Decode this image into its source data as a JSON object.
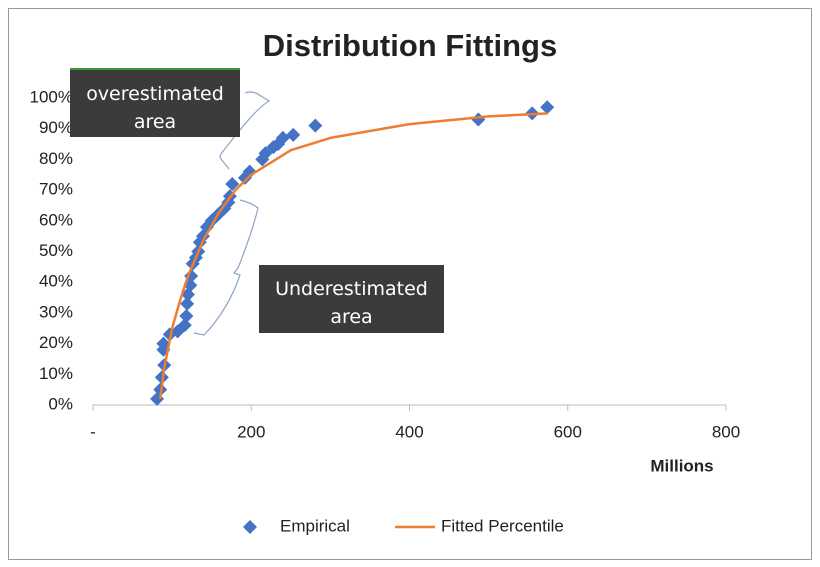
{
  "chart_data": {
    "type": "scatter",
    "title": "Distribution Fittings",
    "x_label": "Millions",
    "xlim": [
      0,
      800
    ],
    "xticks": [
      {
        "value": 0,
        "label": "-"
      },
      200,
      400,
      600,
      800
    ],
    "ylim": [
      0,
      100
    ],
    "yticks": [
      {
        "value": 0,
        "label": "0%"
      },
      {
        "value": 10,
        "label": "10%"
      },
      {
        "value": 20,
        "label": "20%"
      },
      {
        "value": 30,
        "label": "30%"
      },
      {
        "value": 40,
        "label": "40%"
      },
      {
        "value": 50,
        "label": "50%"
      },
      {
        "value": 60,
        "label": "60%"
      },
      {
        "value": 70,
        "label": "70%"
      },
      {
        "value": 80,
        "label": "80%"
      },
      {
        "value": 90,
        "label": "90%"
      },
      {
        "value": 100,
        "label": "100%"
      }
    ],
    "grid": false,
    "legend": "bottom",
    "series": [
      {
        "name": "Empirical",
        "style": "marker",
        "color": "#4472c4",
        "x": [
          81,
          85,
          87,
          90,
          89,
          89,
          97,
          107,
          116,
          118,
          119,
          120,
          123,
          124,
          126,
          130,
          133,
          135,
          139,
          144,
          150,
          158,
          166,
          171,
          173,
          176,
          192,
          198,
          214,
          218,
          228,
          234,
          240,
          253,
          281,
          487,
          555,
          574
        ],
        "values": [
          2,
          5,
          9,
          13,
          18,
          20,
          23,
          24,
          26,
          29,
          33,
          36,
          39,
          42,
          46,
          48,
          50,
          53,
          55,
          58,
          60,
          62,
          64,
          66,
          68,
          72,
          74,
          76,
          80,
          82,
          84,
          85,
          87,
          88,
          91,
          93,
          95,
          97
        ]
      },
      {
        "name": "Fitted Percentile",
        "style": "line",
        "color": "#ed7d31",
        "x": [
          85,
          90,
          100,
          110,
          120,
          140,
          160,
          180,
          200,
          250,
          300,
          400,
          500,
          575
        ],
        "values": [
          2,
          12,
          25,
          34,
          42,
          54,
          63,
          70,
          75,
          83,
          87,
          91.5,
          94,
          95
        ]
      }
    ],
    "annotations": [
      "overestimated area",
      "Underestimated area"
    ]
  }
}
